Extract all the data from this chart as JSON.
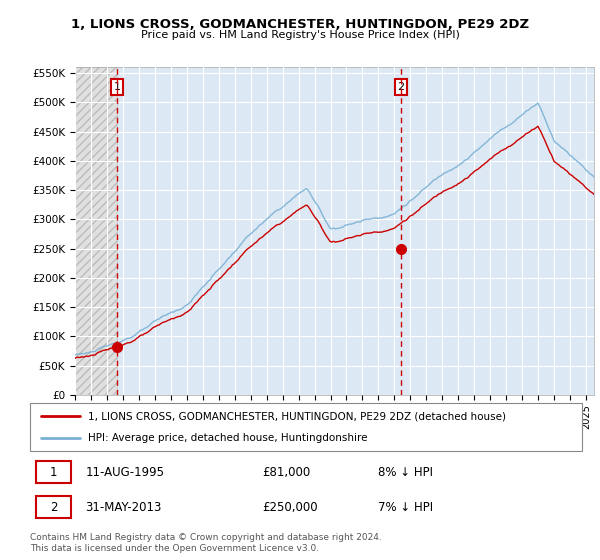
{
  "title": "1, LIONS CROSS, GODMANCHESTER, HUNTINGDON, PE29 2DZ",
  "subtitle": "Price paid vs. HM Land Registry's House Price Index (HPI)",
  "ylim": [
    0,
    560000
  ],
  "yticks": [
    0,
    50000,
    100000,
    150000,
    200000,
    250000,
    300000,
    350000,
    400000,
    450000,
    500000,
    550000
  ],
  "ytick_labels": [
    "£0",
    "£50K",
    "£100K",
    "£150K",
    "£200K",
    "£250K",
    "£300K",
    "£350K",
    "£400K",
    "£450K",
    "£500K",
    "£550K"
  ],
  "hpi_color": "#7ab0d4",
  "price_color": "#cc0000",
  "transaction1_date": 1995.62,
  "transaction1_price": 81000,
  "transaction2_date": 2013.42,
  "transaction2_price": 250000,
  "xmin": 1993.0,
  "xmax": 2025.5,
  "legend_label1": "1, LIONS CROSS, GODMANCHESTER, HUNTINGDON, PE29 2DZ (detached house)",
  "legend_label2": "HPI: Average price, detached house, Huntingdonshire",
  "table_row1": [
    "1",
    "11-AUG-1995",
    "£81,000",
    "8% ↓ HPI"
  ],
  "table_row2": [
    "2",
    "31-MAY-2013",
    "£250,000",
    "7% ↓ HPI"
  ],
  "footer": "Contains HM Land Registry data © Crown copyright and database right 2024.\nThis data is licensed under the Open Government Licence v3.0.",
  "background_color": "#ffffff",
  "plot_bg_color": "#dce9f5",
  "grid_color": "#ffffff",
  "hatch_color": "#c8c8c8",
  "hatch_bg": "#e8e8e8"
}
